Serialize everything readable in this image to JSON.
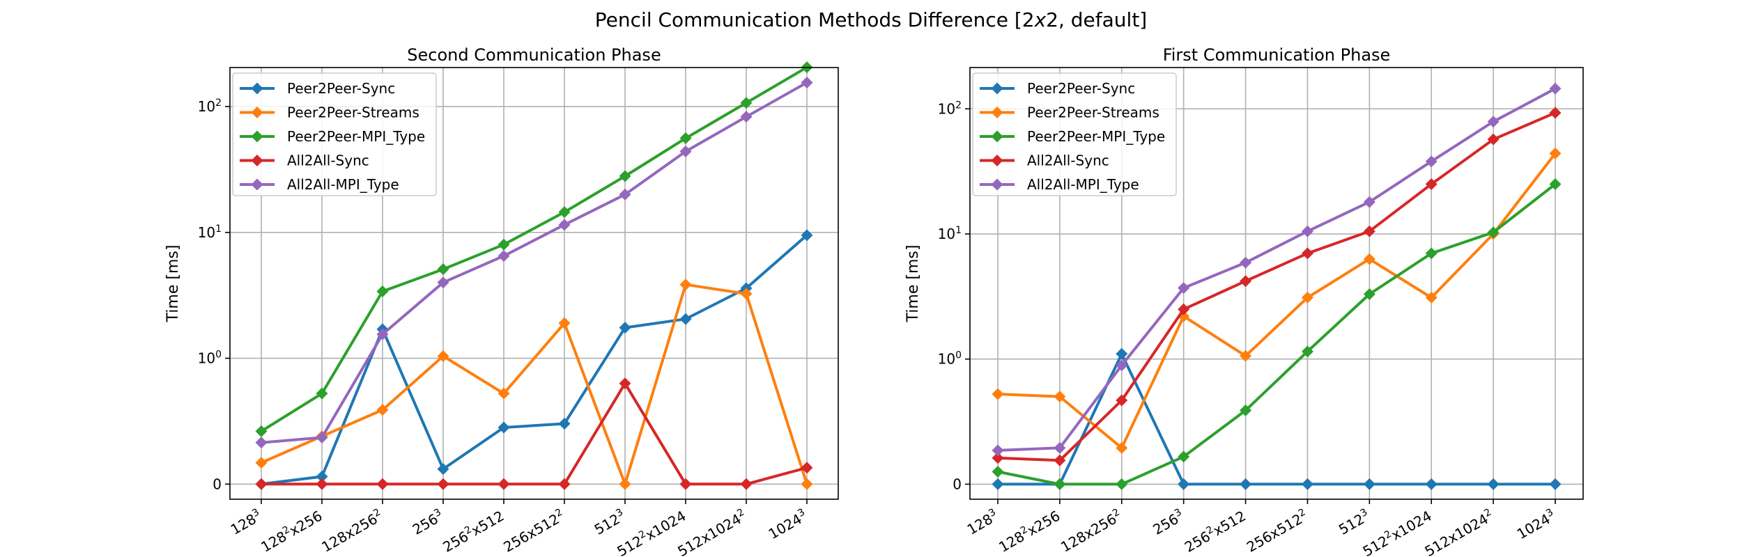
{
  "figure": {
    "suptitle": "Pencil Communication Methods Difference [2x2, default]"
  },
  "chart_data": [
    {
      "type": "line",
      "title": "Second Communication Phase",
      "ylabel": "Time [ms]",
      "xlabel": "",
      "yscale": "symlog",
      "grid": true,
      "legend": "upper-left",
      "categories": [
        {
          "base": "128",
          "sup": "3",
          "rest": ""
        },
        {
          "base": "128",
          "sup": "2",
          "rest": "x256"
        },
        {
          "base": "128x256",
          "sup": "2",
          "rest": ""
        },
        {
          "base": "256",
          "sup": "3",
          "rest": ""
        },
        {
          "base": "256",
          "sup": "2",
          "rest": "x512"
        },
        {
          "base": "256x512",
          "sup": "2",
          "rest": ""
        },
        {
          "base": "512",
          "sup": "3",
          "rest": ""
        },
        {
          "base": "512",
          "sup": "2",
          "rest": "x1024"
        },
        {
          "base": "512x1024",
          "sup": "2",
          "rest": ""
        },
        {
          "base": "1024",
          "sup": "3",
          "rest": ""
        }
      ],
      "yticks": [
        {
          "value": 0,
          "label": "0",
          "sup": ""
        },
        {
          "value": 1,
          "label": "10",
          "sup": "0"
        },
        {
          "value": 10,
          "label": "10",
          "sup": "1"
        },
        {
          "value": 100,
          "label": "10",
          "sup": "2"
        }
      ],
      "series": [
        {
          "name": "Peer2Peer-Sync",
          "color": "#1f77b4",
          "values": [
            0.0,
            0.06,
            1.7,
            0.12,
            0.45,
            0.48,
            1.75,
            2.05,
            3.6,
            9.5
          ]
        },
        {
          "name": "Peer2Peer-Streams",
          "color": "#ff7f0e",
          "values": [
            0.17,
            0.38,
            0.59,
            1.04,
            0.72,
            1.9,
            0.0,
            3.85,
            3.25,
            0.0
          ]
        },
        {
          "name": "Peer2Peer-MPI_Type",
          "color": "#2ca02c",
          "values": [
            0.42,
            0.72,
            3.4,
            5.1,
            8.0,
            14.5,
            28.0,
            56.0,
            107.0,
            205.0
          ]
        },
        {
          "name": "All2All-Sync",
          "color": "#d62728",
          "values": [
            0.0,
            0.0,
            0.0,
            0.0,
            0.0,
            0.0,
            0.8,
            0.0,
            0.0,
            0.13
          ]
        },
        {
          "name": "All2All-MPI_Type",
          "color": "#9467bd",
          "values": [
            0.33,
            0.37,
            1.55,
            4.0,
            6.5,
            11.5,
            20.0,
            44.0,
            83.0,
            155.0
          ]
        }
      ]
    },
    {
      "type": "line",
      "title": "First Communication Phase",
      "ylabel": "Time [ms]",
      "xlabel": "",
      "yscale": "symlog",
      "grid": true,
      "legend": "upper-left",
      "categories": [
        {
          "base": "128",
          "sup": "3",
          "rest": ""
        },
        {
          "base": "128",
          "sup": "2",
          "rest": "x256"
        },
        {
          "base": "128x256",
          "sup": "2",
          "rest": ""
        },
        {
          "base": "256",
          "sup": "3",
          "rest": ""
        },
        {
          "base": "256",
          "sup": "2",
          "rest": "x512"
        },
        {
          "base": "256x512",
          "sup": "2",
          "rest": ""
        },
        {
          "base": "512",
          "sup": "3",
          "rest": ""
        },
        {
          "base": "512",
          "sup": "2",
          "rest": "x1024"
        },
        {
          "base": "512x1024",
          "sup": "2",
          "rest": ""
        },
        {
          "base": "1024",
          "sup": "3",
          "rest": ""
        }
      ],
      "yticks": [
        {
          "value": 0,
          "label": "0",
          "sup": ""
        },
        {
          "value": 1,
          "label": "10",
          "sup": "0"
        },
        {
          "value": 10,
          "label": "10",
          "sup": "1"
        },
        {
          "value": 100,
          "label": "10",
          "sup": "2"
        }
      ],
      "series": [
        {
          "name": "Peer2Peer-Sync",
          "color": "#1f77b4",
          "values": [
            0.0,
            0.0,
            1.1,
            0.0,
            0.0,
            0.0,
            0.0,
            0.0,
            0.0,
            0.0
          ]
        },
        {
          "name": "Peer2Peer-Streams",
          "color": "#ff7f0e",
          "values": [
            0.72,
            0.7,
            0.29,
            2.2,
            1.06,
            3.1,
            6.3,
            3.1,
            10.0,
            44.0
          ]
        },
        {
          "name": "Peer2Peer-MPI_Type",
          "color": "#2ca02c",
          "values": [
            0.1,
            0.0,
            0.0,
            0.22,
            0.59,
            1.15,
            3.3,
            7.0,
            10.3,
            25.0
          ]
        },
        {
          "name": "All2All-Sync",
          "color": "#d62728",
          "values": [
            0.21,
            0.19,
            0.67,
            2.5,
            4.2,
            7.0,
            10.5,
            25.0,
            57.0,
            93.0
          ]
        },
        {
          "name": "All2All-MPI_Type",
          "color": "#9467bd",
          "values": [
            0.27,
            0.29,
            0.95,
            3.7,
            5.9,
            10.5,
            18.0,
            38.0,
            79.0,
            145.0
          ]
        }
      ]
    }
  ]
}
